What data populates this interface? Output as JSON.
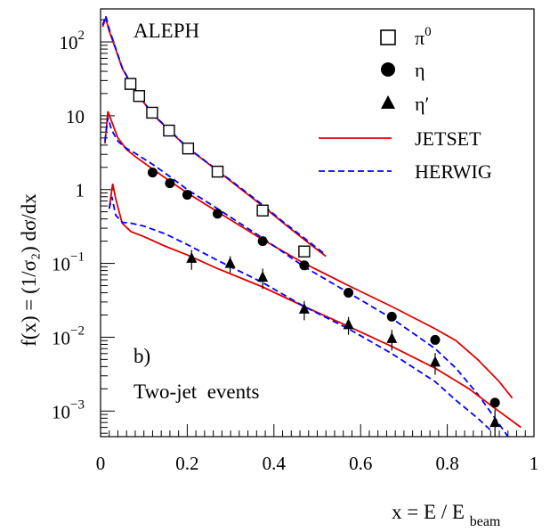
{
  "chart_data": {
    "type": "scatter",
    "scale_y": "log",
    "xlabel_main": "x = E / E",
    "xlabel_sub": "beam",
    "ylabel": "f(x) = (1/σ₂) dσ/dx",
    "xlim": [
      0,
      1
    ],
    "ylim": [
      0.00045,
      280
    ],
    "xticks": [
      {
        "v": 0,
        "label": "0"
      },
      {
        "v": 0.2,
        "label": "0.2"
      },
      {
        "v": 0.4,
        "label": "0.4"
      },
      {
        "v": 0.6,
        "label": "0.6"
      },
      {
        "v": 0.8,
        "label": "0.8"
      },
      {
        "v": 1,
        "label": "1"
      }
    ],
    "yticks": [
      {
        "v": 100,
        "base": "10",
        "exp": "2"
      },
      {
        "v": 10,
        "base": "10",
        "exp": ""
      },
      {
        "v": 1,
        "base": "1",
        "exp": ""
      },
      {
        "v": 0.1,
        "base": "10",
        "exp": "−1"
      },
      {
        "v": 0.01,
        "base": "10",
        "exp": "−2"
      },
      {
        "v": 0.001,
        "base": "10",
        "exp": "−3"
      }
    ],
    "annotations": {
      "experiment": "ALEPH",
      "panel": "b)",
      "selection": "Two-jet  events"
    },
    "legend": {
      "placement": "top-right",
      "entries": [
        {
          "label_base": "π",
          "label_sup": "0",
          "marker": "open-square"
        },
        {
          "label_base": "η",
          "label_sup": "",
          "marker": "filled-circle"
        },
        {
          "label_base": "η′",
          "label_sup": "",
          "marker": "filled-triangle"
        },
        {
          "label_base": "JETSET",
          "label_sup": "",
          "marker": "solid-line",
          "color": "#e00000"
        },
        {
          "label_base": "HERWIG",
          "label_sup": "",
          "marker": "dashed-line",
          "color": "#0000ff"
        }
      ]
    },
    "series": [
      {
        "name": "π0",
        "marker": "open-square",
        "points": [
          [
            0.069,
            27
          ],
          [
            0.089,
            18.5
          ],
          [
            0.119,
            11
          ],
          [
            0.158,
            6.3
          ],
          [
            0.202,
            3.6
          ],
          [
            0.27,
            1.75
          ],
          [
            0.374,
            0.52
          ],
          [
            0.47,
            0.145
          ]
        ]
      },
      {
        "name": "η",
        "marker": "filled-circle",
        "points": [
          [
            0.12,
            1.7
          ],
          [
            0.16,
            1.22
          ],
          [
            0.2,
            0.85
          ],
          [
            0.27,
            0.47
          ],
          [
            0.374,
            0.2
          ],
          [
            0.47,
            0.094
          ],
          [
            0.572,
            0.04
          ],
          [
            0.672,
            0.019
          ],
          [
            0.772,
            0.0092
          ],
          [
            0.91,
            0.0013
          ]
        ]
      },
      {
        "name": "η′",
        "marker": "filled-triangle",
        "points": [
          [
            0.21,
            0.117,
            0.035
          ],
          [
            0.299,
            0.1,
            0.025
          ],
          [
            0.374,
            0.065,
            0.02
          ],
          [
            0.47,
            0.024,
            0.007
          ],
          [
            0.572,
            0.0148,
            0.004
          ],
          [
            0.672,
            0.0096,
            0.003
          ],
          [
            0.772,
            0.0046,
            0.0015
          ],
          [
            0.91,
            0.0007,
            0.00035
          ]
        ]
      }
    ],
    "curves": [
      {
        "name": "JETSET",
        "group": "π0",
        "style": "solid",
        "color": "#e00000",
        "points": [
          [
            0.005,
            160
          ],
          [
            0.012,
            210
          ],
          [
            0.02,
            140
          ],
          [
            0.035,
            80
          ],
          [
            0.05,
            44
          ],
          [
            0.07,
            27
          ],
          [
            0.09,
            18
          ],
          [
            0.12,
            10.5
          ],
          [
            0.16,
            6.2
          ],
          [
            0.2,
            3.7
          ],
          [
            0.27,
            1.8
          ],
          [
            0.33,
            0.95
          ],
          [
            0.374,
            0.6
          ],
          [
            0.42,
            0.36
          ],
          [
            0.47,
            0.21
          ],
          [
            0.52,
            0.125
          ]
        ]
      },
      {
        "name": "HERWIG",
        "group": "π0",
        "style": "dashed",
        "color": "#0000ff",
        "points": [
          [
            0.005,
            170
          ],
          [
            0.012,
            225
          ],
          [
            0.02,
            150
          ],
          [
            0.035,
            82
          ],
          [
            0.05,
            45
          ],
          [
            0.07,
            27.5
          ],
          [
            0.09,
            18.2
          ],
          [
            0.12,
            10.7
          ],
          [
            0.16,
            6.3
          ],
          [
            0.2,
            3.75
          ],
          [
            0.27,
            1.82
          ],
          [
            0.33,
            0.98
          ],
          [
            0.374,
            0.62
          ],
          [
            0.42,
            0.37
          ],
          [
            0.47,
            0.22
          ],
          [
            0.52,
            0.13
          ]
        ]
      },
      {
        "name": "JETSET",
        "group": "η",
        "style": "solid",
        "color": "#e00000",
        "points": [
          [
            0.01,
            4.2
          ],
          [
            0.017,
            11.5
          ],
          [
            0.025,
            8.5
          ],
          [
            0.04,
            5
          ],
          [
            0.06,
            3.5
          ],
          [
            0.08,
            2.8
          ],
          [
            0.12,
            1.9
          ],
          [
            0.16,
            1.3
          ],
          [
            0.2,
            0.9
          ],
          [
            0.27,
            0.5
          ],
          [
            0.374,
            0.21
          ],
          [
            0.47,
            0.1
          ],
          [
            0.572,
            0.05
          ],
          [
            0.672,
            0.026
          ],
          [
            0.772,
            0.013
          ],
          [
            0.82,
            0.009
          ],
          [
            0.87,
            0.005
          ],
          [
            0.92,
            0.0025
          ],
          [
            0.95,
            0.0015
          ]
        ]
      },
      {
        "name": "HERWIG",
        "group": "η",
        "style": "dashed",
        "color": "#0000ff",
        "points": [
          [
            0.01,
            4.5
          ],
          [
            0.017,
            9.5
          ],
          [
            0.025,
            6.5
          ],
          [
            0.04,
            4.5
          ],
          [
            0.06,
            3.6
          ],
          [
            0.08,
            3.1
          ],
          [
            0.12,
            2.2
          ],
          [
            0.16,
            1.5
          ],
          [
            0.2,
            1.0
          ],
          [
            0.27,
            0.55
          ],
          [
            0.374,
            0.22
          ],
          [
            0.47,
            0.09
          ],
          [
            0.572,
            0.04
          ],
          [
            0.672,
            0.018
          ],
          [
            0.772,
            0.007
          ],
          [
            0.82,
            0.0038
          ],
          [
            0.87,
            0.0017
          ],
          [
            0.91,
            0.0008
          ],
          [
            0.94,
            0.00045
          ]
        ]
      },
      {
        "name": "JETSET",
        "group": "η′",
        "style": "solid",
        "color": "#e00000",
        "points": [
          [
            0.02,
            0.55
          ],
          [
            0.028,
            1.2
          ],
          [
            0.035,
            0.75
          ],
          [
            0.05,
            0.35
          ],
          [
            0.07,
            0.27
          ],
          [
            0.1,
            0.23
          ],
          [
            0.15,
            0.17
          ],
          [
            0.2,
            0.13
          ],
          [
            0.27,
            0.085
          ],
          [
            0.374,
            0.048
          ],
          [
            0.47,
            0.026
          ],
          [
            0.572,
            0.014
          ],
          [
            0.672,
            0.0075
          ],
          [
            0.772,
            0.0038
          ],
          [
            0.85,
            0.002
          ],
          [
            0.9,
            0.0012
          ],
          [
            0.97,
            0.0006
          ]
        ]
      },
      {
        "name": "HERWIG",
        "group": "η′",
        "style": "dashed",
        "color": "#0000ff",
        "points": [
          [
            0.02,
            0.55
          ],
          [
            0.026,
            0.8
          ],
          [
            0.035,
            0.45
          ],
          [
            0.05,
            0.36
          ],
          [
            0.07,
            0.35
          ],
          [
            0.1,
            0.32
          ],
          [
            0.15,
            0.25
          ],
          [
            0.2,
            0.18
          ],
          [
            0.27,
            0.11
          ],
          [
            0.374,
            0.055
          ],
          [
            0.47,
            0.026
          ],
          [
            0.572,
            0.013
          ],
          [
            0.672,
            0.006
          ],
          [
            0.772,
            0.0025
          ],
          [
            0.82,
            0.0014
          ],
          [
            0.87,
            0.0008
          ],
          [
            0.9,
            0.00055
          ]
        ]
      }
    ]
  }
}
